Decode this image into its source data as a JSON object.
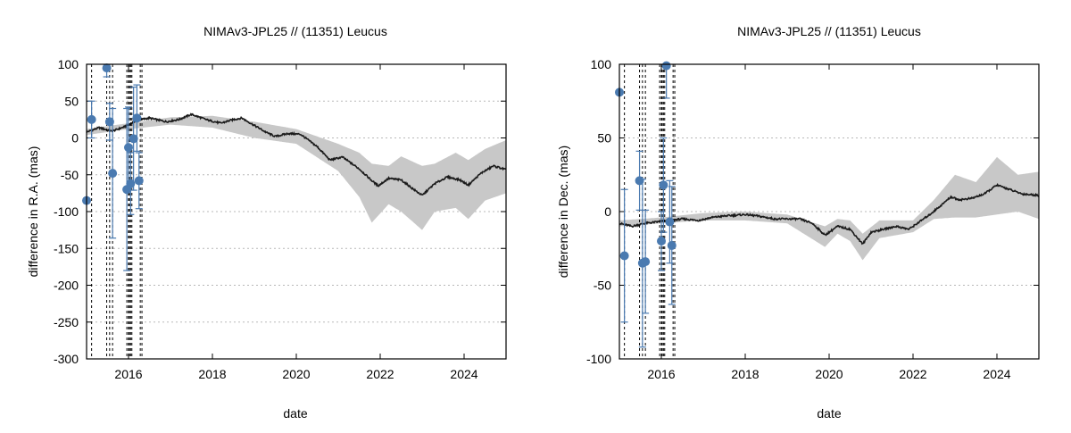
{
  "chart_data": [
    {
      "type": "line",
      "title": "NIMAv3-JPL25 // (11351) Leucus",
      "xlabel": "date",
      "ylabel": "difference in R.A. (mas)",
      "xlim": [
        2015.0,
        2025.0
      ],
      "ylim": [
        -300,
        100
      ],
      "xticks": [
        "2016",
        "2018",
        "2020",
        "2022",
        "2024"
      ],
      "yticks": [
        "100",
        "50",
        "0",
        "-50",
        "-100",
        "-150",
        "-200",
        "-250",
        "-300"
      ],
      "grid": "horizontal dotted",
      "colors": {
        "curve": "#1a1a1a",
        "band": "#c8c8c8",
        "points": "#4a7ab0",
        "epochs": "#000000"
      },
      "observation_epochs": [
        2015.12,
        2015.48,
        2015.55,
        2015.62,
        2015.96,
        2016.0,
        2016.02,
        2016.05,
        2016.08,
        2016.28,
        2016.32
      ],
      "series": [
        {
          "kind": "model_curve",
          "x": [
            2015.0,
            2015.3,
            2015.6,
            2015.9,
            2016.2,
            2016.5,
            2016.9,
            2017.2,
            2017.5,
            2017.9,
            2018.2,
            2018.5,
            2018.7,
            2019.0,
            2019.3,
            2019.5,
            2019.8,
            2020.1,
            2020.5,
            2020.8,
            2021.1,
            2021.5,
            2021.8,
            2021.95,
            2022.2,
            2022.5,
            2022.8,
            2023.0,
            2023.3,
            2023.6,
            2023.9,
            2024.1,
            2024.4,
            2024.7,
            2025.0
          ],
          "values": [
            8,
            14,
            9,
            15,
            24,
            27,
            22,
            25,
            32,
            24,
            20,
            25,
            27,
            17,
            7,
            2,
            6,
            5,
            -12,
            -30,
            -26,
            -42,
            -58,
            -65,
            -55,
            -57,
            -70,
            -78,
            -62,
            -53,
            -57,
            -64,
            -48,
            -38,
            -43
          ]
        },
        {
          "kind": "uncertainty_band",
          "x": [
            2015.0,
            2016.0,
            2017.0,
            2018.0,
            2019.0,
            2020.0,
            2021.0,
            2021.5,
            2021.8,
            2022.2,
            2022.5,
            2023.0,
            2023.3,
            2023.8,
            2024.1,
            2024.5,
            2025.0
          ],
          "upper": [
            12,
            20,
            28,
            30,
            22,
            12,
            -8,
            -20,
            -35,
            -38,
            -25,
            -38,
            -35,
            -20,
            -30,
            -15,
            -3
          ],
          "lower": [
            4,
            12,
            18,
            14,
            0,
            -8,
            -45,
            -80,
            -115,
            -90,
            -100,
            -125,
            -100,
            -95,
            -110,
            -85,
            -75
          ]
        },
        {
          "kind": "observations",
          "x": [
            2015.0,
            2015.12,
            2015.48,
            2015.55,
            2015.62,
            2015.96,
            2016.0,
            2016.05,
            2016.12,
            2016.2,
            2016.25
          ],
          "values": [
            -85,
            25,
            95,
            22,
            -48,
            -70,
            -13,
            -62,
            -1,
            27,
            -58
          ],
          "err": [
            0,
            25,
            12,
            25,
            88,
            110,
            55,
            42,
            70,
            45,
            38
          ]
        }
      ]
    },
    {
      "type": "line",
      "title": "NIMAv3-JPL25 // (11351) Leucus",
      "xlabel": "date",
      "ylabel": "difference in Dec. (mas)",
      "xlim": [
        2015.0,
        2025.0
      ],
      "ylim": [
        -100,
        100
      ],
      "xticks": [
        "2016",
        "2018",
        "2020",
        "2022",
        "2024"
      ],
      "yticks": [
        "100",
        "50",
        "0",
        "-50",
        "-100"
      ],
      "grid": "horizontal dotted",
      "colors": {
        "curve": "#1a1a1a",
        "band": "#c8c8c8",
        "points": "#4a7ab0",
        "epochs": "#000000"
      },
      "observation_epochs": [
        2015.12,
        2015.48,
        2015.55,
        2015.62,
        2015.96,
        2016.0,
        2016.02,
        2016.05,
        2016.08,
        2016.28,
        2016.32
      ],
      "series": [
        {
          "kind": "model_curve",
          "x": [
            2015.0,
            2015.3,
            2015.6,
            2015.9,
            2016.2,
            2016.5,
            2016.9,
            2017.2,
            2017.5,
            2018.0,
            2018.3,
            2018.7,
            2019.0,
            2019.3,
            2019.6,
            2019.9,
            2020.2,
            2020.5,
            2020.8,
            2021.0,
            2021.3,
            2021.6,
            2021.9,
            2022.1,
            2022.4,
            2022.7,
            2022.9,
            2023.1,
            2023.4,
            2023.7,
            2024.0,
            2024.3,
            2024.6,
            2025.0
          ],
          "values": [
            -8,
            -10,
            -8,
            -7,
            -6,
            -5,
            -6,
            -4,
            -3,
            -2,
            -3,
            -5,
            -5,
            -5,
            -8,
            -16,
            -10,
            -12,
            -22,
            -14,
            -12,
            -10,
            -12,
            -8,
            -2,
            5,
            10,
            8,
            9,
            12,
            18,
            15,
            12,
            11
          ]
        },
        {
          "kind": "uncertainty_band",
          "x": [
            2015.0,
            2016.0,
            2017.0,
            2018.0,
            2019.0,
            2019.9,
            2020.2,
            2020.5,
            2020.8,
            2021.2,
            2022.0,
            2022.5,
            2023.0,
            2023.5,
            2024.0,
            2024.5,
            2025.0
          ],
          "upper": [
            -6,
            -4,
            -1,
            0,
            -2,
            -10,
            -5,
            -6,
            -15,
            -6,
            -6,
            8,
            25,
            20,
            37,
            25,
            27
          ],
          "lower": [
            -10,
            -8,
            -6,
            -6,
            -8,
            -24,
            -15,
            -20,
            -33,
            -18,
            -14,
            -5,
            -4,
            -4,
            -2,
            0,
            -5
          ]
        },
        {
          "kind": "observations",
          "x": [
            2015.0,
            2015.12,
            2015.48,
            2015.55,
            2015.62,
            2016.0,
            2016.05,
            2016.12,
            2016.2,
            2016.25
          ],
          "values": [
            81,
            -30,
            21,
            -35,
            -34,
            -20,
            18,
            99,
            -7,
            -23
          ],
          "err": [
            0,
            45,
            20,
            57,
            35,
            20,
            32,
            22,
            28,
            40
          ]
        }
      ]
    }
  ]
}
